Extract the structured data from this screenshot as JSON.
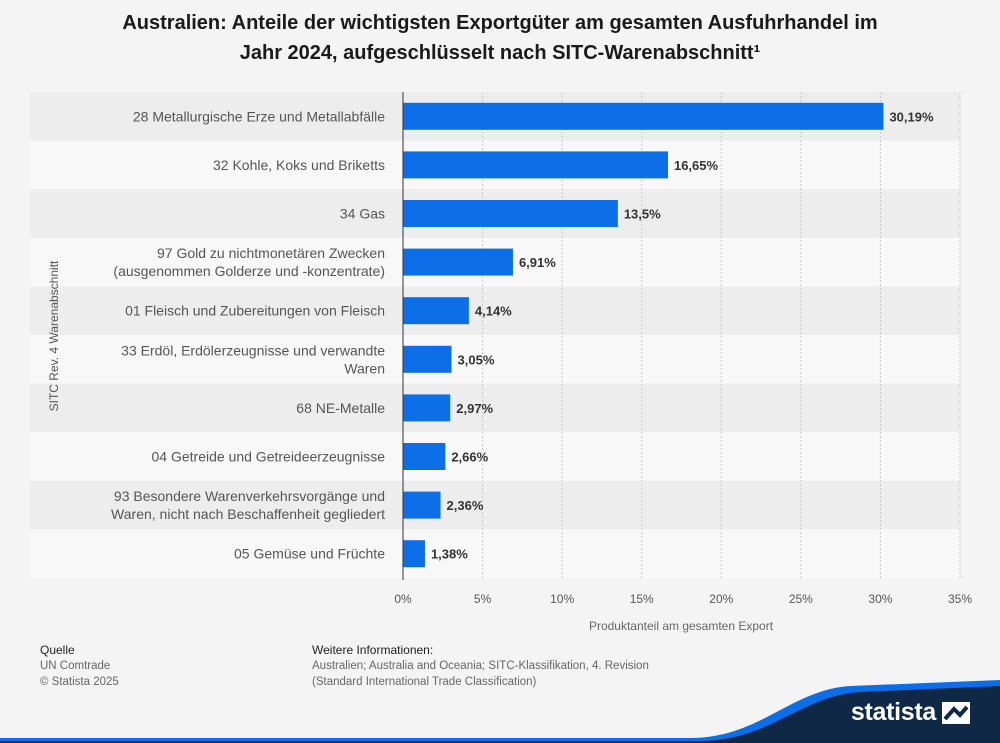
{
  "title_line1": "Australien: Anteile der wichtigsten Exportgüter am gesamten Ausfuhrhandel im",
  "title_line2": "Jahr 2024, aufgeschlüsselt nach SITC-Warenabschnitt¹",
  "chart_data": {
    "type": "bar",
    "orientation": "horizontal",
    "categories": [
      [
        "28 Metallurgische Erze und Metallabfälle"
      ],
      [
        "32 Kohle, Koks und Briketts"
      ],
      [
        "34 Gas"
      ],
      [
        "97 Gold zu nichtmonetären Zwecken",
        "(ausgenommen Golderze und -konzentrate)"
      ],
      [
        "01 Fleisch und Zubereitungen von Fleisch"
      ],
      [
        "33 Erdöl, Erdölerzeugnisse und verwandte",
        "Waren"
      ],
      [
        "68 NE-Metalle"
      ],
      [
        "04 Getreide und Getreideerzeugnisse"
      ],
      [
        "93 Besondere Warenverkehrsvorgänge und",
        "Waren, nicht nach Beschaffenheit gegliedert"
      ],
      [
        "05 Gemüse und Früchte"
      ]
    ],
    "values": [
      30.19,
      16.65,
      13.5,
      6.91,
      4.14,
      3.05,
      2.97,
      2.66,
      2.36,
      1.38
    ],
    "value_labels": [
      "30,19%",
      "16,65%",
      "13,5%",
      "6,91%",
      "4,14%",
      "3,05%",
      "2,97%",
      "2,66%",
      "2,36%",
      "1,38%"
    ],
    "xlim": [
      0,
      35
    ],
    "xticks": [
      0,
      5,
      10,
      15,
      20,
      25,
      30,
      35
    ],
    "xtick_labels": [
      "0%",
      "5%",
      "10%",
      "15%",
      "20%",
      "25%",
      "30%",
      "35%"
    ],
    "xlabel": "Produktanteil am gesamten Export",
    "ylabel": "SITC Rev. 4 Warenabschnitt",
    "bar_color": "#0d6fe8",
    "grid": true
  },
  "footer": {
    "source_head": "Quelle",
    "source_lines": [
      "UN Comtrade",
      "© Statista 2025"
    ],
    "info_head": "Weitere Informationen:",
    "info_lines": [
      "Australien; Australia and Oceania; SITC-Klassifikation, 4. Revision",
      "(Standard International Trade Classification)"
    ]
  },
  "logo_text": "statista",
  "colors": {
    "wave_dark": "#0e2846",
    "wave_light": "#0d6fe8",
    "background": "#f4f4f4"
  }
}
